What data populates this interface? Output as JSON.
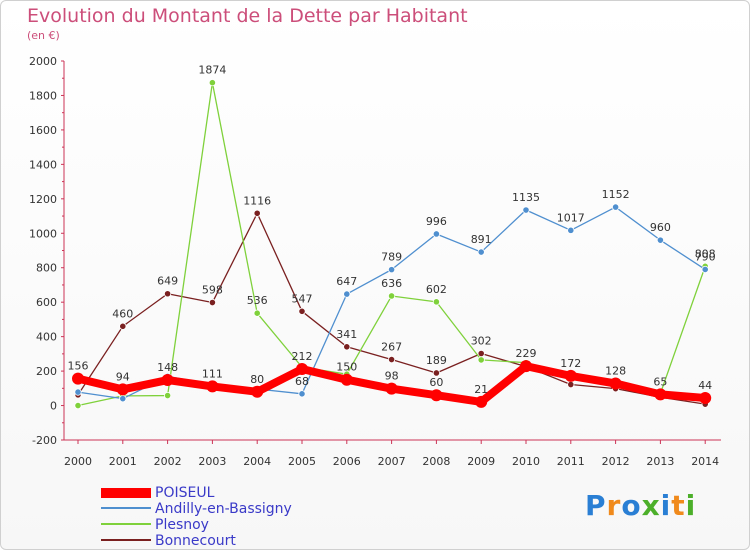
{
  "title": "Evolution du Montant de la Dette par Habitant",
  "subtitle": "(en €)",
  "brand": {
    "text": "Proxiti",
    "colors": [
      "#2a7fd4",
      "#f08a1c",
      "#2a7fd4",
      "#4caf2a",
      "#2a7fd4",
      "#f08a1c",
      "#4caf2a"
    ]
  },
  "chart_data": {
    "type": "line",
    "title": "Evolution du Montant de la Dette par Habitant",
    "ylabel": "(en €)",
    "xlabel": "",
    "ylim": [
      -200,
      2000
    ],
    "yticks": [
      -200,
      0,
      200,
      400,
      600,
      800,
      1000,
      1200,
      1400,
      1600,
      1800,
      2000
    ],
    "grid": false,
    "legend_placement": "bottom-left",
    "x": [
      "2000",
      "2001",
      "2002",
      "2003",
      "2004",
      "2005",
      "2006",
      "2007",
      "2008",
      "2009",
      "2010",
      "2011",
      "2012",
      "2013",
      "2014"
    ],
    "series": [
      {
        "name": "Bonnecourt",
        "color": "#7a2020",
        "values": [
          62,
          460,
          649,
          598,
          1116,
          547,
          341,
          267,
          189,
          302,
          226,
          122,
          98,
          48,
          8
        ],
        "labels": [
          "",
          "460",
          "649",
          "598",
          "1116",
          "547",
          "341",
          "267",
          "189",
          "302",
          "",
          "",
          "",
          "",
          ""
        ]
      },
      {
        "name": "Plesnoy",
        "color": "#7fd13b",
        "values": [
          0,
          56,
          58,
          1874,
          536,
          223,
          182,
          636,
          602,
          265,
          249,
          177,
          135,
          70,
          808
        ],
        "labels": [
          "",
          "",
          "",
          "1874",
          "536",
          "",
          "",
          "636",
          "602",
          "",
          "",
          "",
          "",
          "",
          "808"
        ]
      },
      {
        "name": "Andilly-en-Bassigny",
        "color": "#4f8fcf",
        "values": [
          78,
          40,
          169,
          123,
          96,
          68,
          647,
          789,
          996,
          891,
          1135,
          1017,
          1152,
          960,
          790
        ],
        "labels": [
          "",
          "",
          "",
          "",
          "",
          "68",
          "647",
          "789",
          "996",
          "891",
          "1135",
          "1017",
          "1152",
          "960",
          "790"
        ]
      },
      {
        "name": "POISEUL",
        "color": "#ff0000",
        "values": [
          156,
          94,
          148,
          111,
          80,
          212,
          150,
          98,
          60,
          21,
          229,
          172,
          128,
          65,
          44
        ],
        "labels": [
          "156",
          "94",
          "148",
          "111",
          "80",
          "212",
          "150",
          "98",
          "60",
          "21",
          "229",
          "172",
          "128",
          "65",
          "44"
        ]
      }
    ]
  },
  "legend": [
    {
      "name": "POISEUL",
      "color": "#ff0000",
      "thickness": 10
    },
    {
      "name": "Andilly-en-Bassigny",
      "color": "#4f8fcf",
      "thickness": 2
    },
    {
      "name": "Plesnoy",
      "color": "#7fd13b",
      "thickness": 2
    },
    {
      "name": "Bonnecourt",
      "color": "#7a2020",
      "thickness": 2
    }
  ]
}
